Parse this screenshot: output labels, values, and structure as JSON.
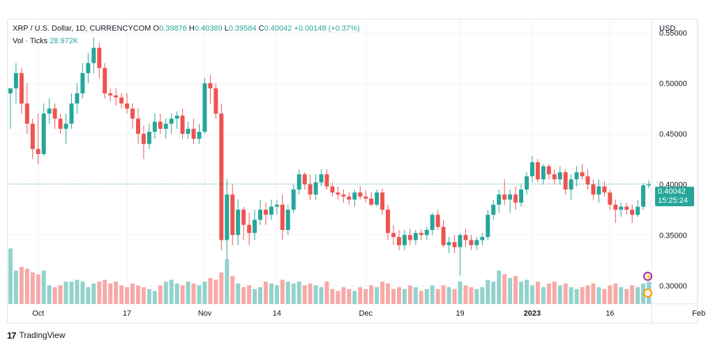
{
  "header": {
    "symbol": "XRP / U.S. Dollar, 1D, CURRENCYCOM",
    "open_label": "O",
    "open": "0.39876",
    "high_label": "H",
    "high": "0.40389",
    "low_label": "L",
    "low": "0.39584",
    "close_label": "C",
    "close": "0.40042",
    "change": "+0.00148 (+0.37%)",
    "vol_label": "Vol · Ticks",
    "vol_value": "28.972K"
  },
  "axis": {
    "currency": "USD"
  },
  "price_badge": {
    "price": "0.40042",
    "countdown": "15:25:24"
  },
  "footer": {
    "brand": "TradingView",
    "logo_glyph": "17"
  },
  "colors": {
    "up": "#26a69a",
    "down": "#ef5350",
    "up_vol": "#92d2cc",
    "down_vol": "#f7a9a7",
    "grid": "#f0f3fa"
  },
  "chart_data": {
    "type": "candlestick",
    "y_range": [
      0.282,
      0.563
    ],
    "y_ticks": [
      "0.55000",
      "0.50000",
      "0.45000",
      "0.40000",
      "0.35000",
      "0.30000"
    ],
    "y_tick_values": [
      0.55,
      0.5,
      0.45,
      0.4,
      0.35,
      0.3
    ],
    "x_ticks": [
      {
        "label": "Oct",
        "index": 5,
        "bold": false
      },
      {
        "label": "17",
        "index": 21,
        "bold": false
      },
      {
        "label": "Nov",
        "index": 35,
        "bold": false
      },
      {
        "label": "14",
        "index": 48,
        "bold": false
      },
      {
        "label": "Dec",
        "index": 64,
        "bold": false
      },
      {
        "label": "19",
        "index": 81,
        "bold": false
      },
      {
        "label": "2023",
        "index": 94,
        "bold": true
      },
      {
        "label": "16",
        "index": 108,
        "bold": false
      },
      {
        "label": "Feb",
        "index": 124,
        "bold": false
      }
    ],
    "last_price": 0.40042,
    "volume_max": 40,
    "candles": [
      [
        0.49,
        0.495,
        0.455,
        0.495,
        30
      ],
      [
        0.495,
        0.52,
        0.48,
        0.51,
        18
      ],
      [
        0.51,
        0.515,
        0.47,
        0.48,
        20
      ],
      [
        0.48,
        0.5,
        0.45,
        0.46,
        19
      ],
      [
        0.46,
        0.465,
        0.425,
        0.435,
        17
      ],
      [
        0.435,
        0.47,
        0.42,
        0.43,
        16
      ],
      [
        0.43,
        0.48,
        0.428,
        0.47,
        18
      ],
      [
        0.47,
        0.485,
        0.46,
        0.475,
        10
      ],
      [
        0.475,
        0.48,
        0.455,
        0.465,
        9
      ],
      [
        0.465,
        0.47,
        0.45,
        0.455,
        10
      ],
      [
        0.455,
        0.47,
        0.44,
        0.46,
        12
      ],
      [
        0.46,
        0.49,
        0.455,
        0.48,
        12
      ],
      [
        0.48,
        0.5,
        0.47,
        0.49,
        13
      ],
      [
        0.49,
        0.52,
        0.485,
        0.51,
        12
      ],
      [
        0.51,
        0.53,
        0.5,
        0.52,
        9
      ],
      [
        0.52,
        0.545,
        0.51,
        0.535,
        11
      ],
      [
        0.535,
        0.54,
        0.505,
        0.515,
        12
      ],
      [
        0.515,
        0.52,
        0.485,
        0.49,
        13
      ],
      [
        0.49,
        0.495,
        0.482,
        0.488,
        11
      ],
      [
        0.488,
        0.495,
        0.478,
        0.486,
        12
      ],
      [
        0.486,
        0.49,
        0.475,
        0.48,
        10
      ],
      [
        0.48,
        0.49,
        0.47,
        0.475,
        9
      ],
      [
        0.475,
        0.48,
        0.455,
        0.465,
        11
      ],
      [
        0.465,
        0.475,
        0.44,
        0.45,
        10
      ],
      [
        0.45,
        0.458,
        0.425,
        0.44,
        9
      ],
      [
        0.44,
        0.46,
        0.435,
        0.452,
        8
      ],
      [
        0.452,
        0.47,
        0.445,
        0.462,
        7
      ],
      [
        0.462,
        0.47,
        0.45,
        0.455,
        10
      ],
      [
        0.455,
        0.465,
        0.445,
        0.46,
        12
      ],
      [
        0.46,
        0.47,
        0.45,
        0.465,
        13
      ],
      [
        0.465,
        0.472,
        0.455,
        0.468,
        11
      ],
      [
        0.468,
        0.475,
        0.445,
        0.45,
        10
      ],
      [
        0.45,
        0.462,
        0.445,
        0.455,
        12
      ],
      [
        0.455,
        0.465,
        0.44,
        0.445,
        11
      ],
      [
        0.445,
        0.46,
        0.44,
        0.452,
        10
      ],
      [
        0.452,
        0.505,
        0.45,
        0.5,
        12
      ],
      [
        0.5,
        0.508,
        0.48,
        0.495,
        14
      ],
      [
        0.495,
        0.5,
        0.465,
        0.47,
        13
      ],
      [
        0.47,
        0.48,
        0.335,
        0.345,
        17
      ],
      [
        0.345,
        0.405,
        0.325,
        0.39,
        24
      ],
      [
        0.39,
        0.4,
        0.34,
        0.35,
        15
      ],
      [
        0.35,
        0.385,
        0.34,
        0.375,
        11
      ],
      [
        0.375,
        0.378,
        0.345,
        0.36,
        9
      ],
      [
        0.36,
        0.372,
        0.34,
        0.352,
        10
      ],
      [
        0.352,
        0.375,
        0.345,
        0.365,
        8
      ],
      [
        0.365,
        0.385,
        0.36,
        0.375,
        9
      ],
      [
        0.375,
        0.382,
        0.36,
        0.37,
        12
      ],
      [
        0.37,
        0.385,
        0.365,
        0.378,
        11
      ],
      [
        0.378,
        0.385,
        0.37,
        0.38,
        10
      ],
      [
        0.38,
        0.39,
        0.345,
        0.355,
        13
      ],
      [
        0.355,
        0.38,
        0.35,
        0.375,
        12
      ],
      [
        0.375,
        0.4,
        0.372,
        0.395,
        11
      ],
      [
        0.395,
        0.415,
        0.39,
        0.41,
        12
      ],
      [
        0.41,
        0.412,
        0.395,
        0.4,
        10
      ],
      [
        0.4,
        0.41,
        0.385,
        0.39,
        11
      ],
      [
        0.39,
        0.41,
        0.385,
        0.402,
        10
      ],
      [
        0.402,
        0.415,
        0.398,
        0.41,
        9
      ],
      [
        0.41,
        0.415,
        0.395,
        0.398,
        12
      ],
      [
        0.398,
        0.402,
        0.388,
        0.392,
        8
      ],
      [
        0.392,
        0.398,
        0.385,
        0.39,
        7
      ],
      [
        0.39,
        0.395,
        0.382,
        0.388,
        9
      ],
      [
        0.388,
        0.392,
        0.38,
        0.385,
        8
      ],
      [
        0.385,
        0.395,
        0.378,
        0.392,
        7
      ],
      [
        0.392,
        0.398,
        0.385,
        0.388,
        9
      ],
      [
        0.388,
        0.394,
        0.382,
        0.386,
        8
      ],
      [
        0.386,
        0.392,
        0.378,
        0.38,
        10
      ],
      [
        0.38,
        0.395,
        0.378,
        0.392,
        9
      ],
      [
        0.392,
        0.396,
        0.37,
        0.375,
        12
      ],
      [
        0.375,
        0.38,
        0.345,
        0.352,
        11
      ],
      [
        0.352,
        0.36,
        0.34,
        0.348,
        8
      ],
      [
        0.348,
        0.355,
        0.335,
        0.34,
        9
      ],
      [
        0.34,
        0.355,
        0.335,
        0.35,
        8
      ],
      [
        0.35,
        0.356,
        0.34,
        0.345,
        10
      ],
      [
        0.345,
        0.355,
        0.34,
        0.352,
        9
      ],
      [
        0.352,
        0.356,
        0.345,
        0.35,
        7
      ],
      [
        0.35,
        0.358,
        0.345,
        0.355,
        8
      ],
      [
        0.355,
        0.372,
        0.35,
        0.37,
        10
      ],
      [
        0.37,
        0.375,
        0.355,
        0.358,
        8
      ],
      [
        0.358,
        0.365,
        0.338,
        0.34,
        10
      ],
      [
        0.34,
        0.348,
        0.332,
        0.343,
        9
      ],
      [
        0.343,
        0.35,
        0.332,
        0.338,
        8
      ],
      [
        0.338,
        0.352,
        0.31,
        0.35,
        12
      ],
      [
        0.35,
        0.356,
        0.338,
        0.345,
        10
      ],
      [
        0.345,
        0.35,
        0.335,
        0.34,
        9
      ],
      [
        0.34,
        0.348,
        0.335,
        0.345,
        8
      ],
      [
        0.345,
        0.352,
        0.34,
        0.348,
        9
      ],
      [
        0.348,
        0.375,
        0.345,
        0.37,
        13
      ],
      [
        0.37,
        0.385,
        0.365,
        0.38,
        12
      ],
      [
        0.38,
        0.395,
        0.372,
        0.39,
        18
      ],
      [
        0.39,
        0.405,
        0.38,
        0.385,
        16
      ],
      [
        0.385,
        0.395,
        0.372,
        0.39,
        14
      ],
      [
        0.39,
        0.398,
        0.375,
        0.382,
        15
      ],
      [
        0.382,
        0.4,
        0.378,
        0.395,
        12
      ],
      [
        0.395,
        0.412,
        0.39,
        0.408,
        13
      ],
      [
        0.408,
        0.428,
        0.402,
        0.422,
        10
      ],
      [
        0.422,
        0.425,
        0.402,
        0.405,
        12
      ],
      [
        0.405,
        0.42,
        0.4,
        0.418,
        9
      ],
      [
        0.418,
        0.42,
        0.405,
        0.41,
        11
      ],
      [
        0.41,
        0.415,
        0.4,
        0.405,
        12
      ],
      [
        0.405,
        0.418,
        0.4,
        0.412,
        10
      ],
      [
        0.412,
        0.415,
        0.39,
        0.395,
        11
      ],
      [
        0.395,
        0.41,
        0.385,
        0.405,
        9
      ],
      [
        0.405,
        0.418,
        0.398,
        0.412,
        8
      ],
      [
        0.412,
        0.42,
        0.405,
        0.408,
        9
      ],
      [
        0.408,
        0.415,
        0.395,
        0.4,
        10
      ],
      [
        0.4,
        0.405,
        0.385,
        0.39,
        11
      ],
      [
        0.39,
        0.405,
        0.382,
        0.398,
        9
      ],
      [
        0.398,
        0.403,
        0.388,
        0.392,
        8
      ],
      [
        0.392,
        0.395,
        0.375,
        0.38,
        10
      ],
      [
        0.38,
        0.385,
        0.362,
        0.375,
        11
      ],
      [
        0.375,
        0.382,
        0.368,
        0.378,
        9
      ],
      [
        0.378,
        0.382,
        0.37,
        0.375,
        8
      ],
      [
        0.375,
        0.38,
        0.362,
        0.37,
        10
      ],
      [
        0.37,
        0.385,
        0.368,
        0.378,
        9
      ],
      [
        0.378,
        0.401,
        0.375,
        0.399,
        11
      ],
      [
        0.399,
        0.404,
        0.396,
        0.4,
        12
      ]
    ]
  }
}
